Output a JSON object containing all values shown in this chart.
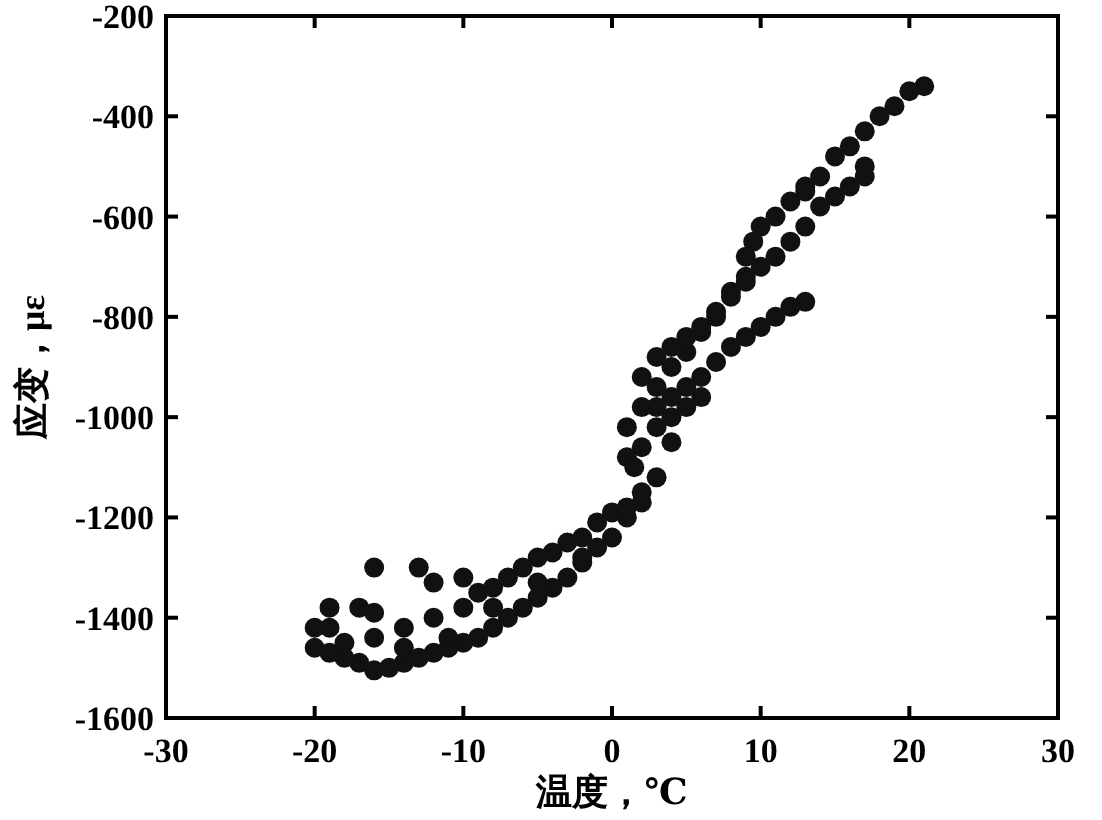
{
  "chart_data": {
    "type": "scatter",
    "xlabel": "温度，℃",
    "ylabel": "应变，με",
    "xlim": [
      -30,
      30
    ],
    "ylim": [
      -1600,
      -200
    ],
    "xticks": [
      -30,
      -20,
      -10,
      0,
      10,
      20,
      30
    ],
    "yticks": [
      -1600,
      -1400,
      -1200,
      -1000,
      -800,
      -600,
      -400,
      -200
    ],
    "marker": "circle",
    "grid": false,
    "series": [
      {
        "color": "#111111",
        "x": [
          21,
          20,
          19,
          18,
          17,
          16,
          15,
          14,
          13,
          12,
          11,
          10,
          9.5,
          9,
          10,
          11,
          12,
          13,
          14,
          15,
          16,
          17,
          17,
          13,
          9,
          8,
          7,
          6,
          5,
          4,
          3,
          2,
          1,
          1,
          1.5,
          2,
          3,
          4,
          5,
          6,
          4,
          3,
          2,
          1,
          0,
          -1,
          -2,
          -3,
          -4,
          -5,
          -6,
          -7,
          -8,
          -9,
          -10,
          -11,
          -12,
          -13,
          -14,
          -15,
          -16,
          -17,
          -18,
          -19,
          -20,
          -20,
          -19,
          -17,
          -16,
          -16,
          -13,
          -12,
          -10,
          -9,
          -7,
          -5,
          -3,
          -1,
          0,
          1,
          2,
          -2,
          -4,
          -6,
          -8,
          -10,
          -12,
          -14,
          -16,
          -18,
          -19,
          -14,
          -11,
          -8,
          -5,
          -2,
          13,
          12,
          11,
          10,
          9,
          8,
          7,
          6,
          5,
          4,
          3,
          2,
          3,
          4,
          5,
          6,
          7,
          8,
          9
        ],
        "values": [
          -340,
          -350,
          -380,
          -400,
          -430,
          -460,
          -480,
          -520,
          -540,
          -570,
          -600,
          -620,
          -650,
          -680,
          -700,
          -680,
          -650,
          -620,
          -580,
          -560,
          -540,
          -520,
          -500,
          -550,
          -720,
          -750,
          -790,
          -830,
          -870,
          -900,
          -940,
          -980,
          -1020,
          -1080,
          -1100,
          -1060,
          -1020,
          -1000,
          -980,
          -960,
          -1050,
          -1120,
          -1170,
          -1200,
          -1240,
          -1260,
          -1290,
          -1320,
          -1340,
          -1360,
          -1380,
          -1400,
          -1420,
          -1440,
          -1450,
          -1460,
          -1470,
          -1480,
          -1490,
          -1500,
          -1505,
          -1490,
          -1480,
          -1470,
          -1460,
          -1420,
          -1380,
          -1380,
          -1390,
          -1300,
          -1300,
          -1330,
          -1320,
          -1350,
          -1320,
          -1280,
          -1250,
          -1210,
          -1190,
          -1180,
          -1150,
          -1240,
          -1270,
          -1300,
          -1340,
          -1380,
          -1400,
          -1420,
          -1440,
          -1450,
          -1420,
          -1460,
          -1440,
          -1380,
          -1330,
          -1280,
          -770,
          -780,
          -800,
          -820,
          -840,
          -860,
          -890,
          -920,
          -940,
          -960,
          -980,
          -920,
          -880,
          -860,
          -840,
          -820,
          -800,
          -760,
          -730
        ]
      }
    ]
  }
}
